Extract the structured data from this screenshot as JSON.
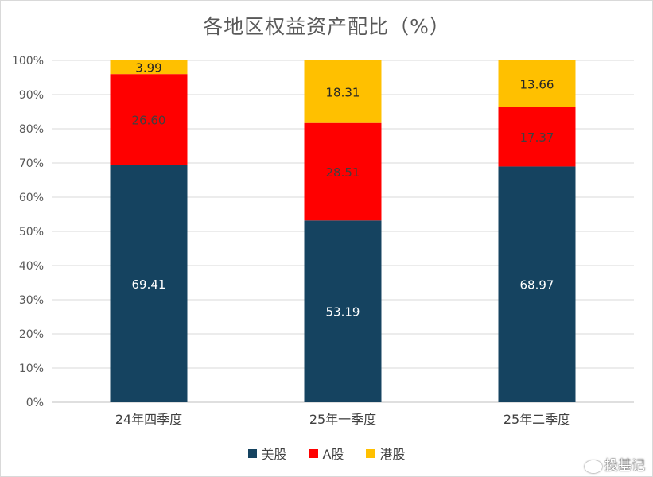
{
  "chart_data": {
    "type": "bar",
    "stacked": true,
    "title": "各地区权益资产配比（%）",
    "categories": [
      "24年四季度",
      "25年一季度",
      "25年二季度"
    ],
    "series": [
      {
        "name": "美股",
        "color": "#154360",
        "labelColor": "#ffffff",
        "values": [
          69.41,
          53.19,
          68.97
        ],
        "labels": [
          "69.41",
          "53.19",
          "68.97"
        ]
      },
      {
        "name": "A股",
        "color": "#ff0000",
        "labelColor": "#404040",
        "values": [
          26.6,
          28.51,
          17.37
        ],
        "labels": [
          "26.60",
          "28.51",
          "17.37"
        ]
      },
      {
        "name": "港股",
        "color": "#ffc000",
        "labelColor": "#262626",
        "values": [
          3.99,
          18.31,
          13.66
        ],
        "labels": [
          "3.99",
          "18.31",
          "13.66"
        ]
      }
    ],
    "ylim": [
      0,
      100
    ],
    "yticks": [
      "0%",
      "10%",
      "20%",
      "30%",
      "40%",
      "50%",
      "60%",
      "70%",
      "80%",
      "90%",
      "100%"
    ],
    "grid": true,
    "legend": "bottom"
  },
  "watermark": {
    "text": "投基记",
    "icon": "weibo-icon"
  }
}
